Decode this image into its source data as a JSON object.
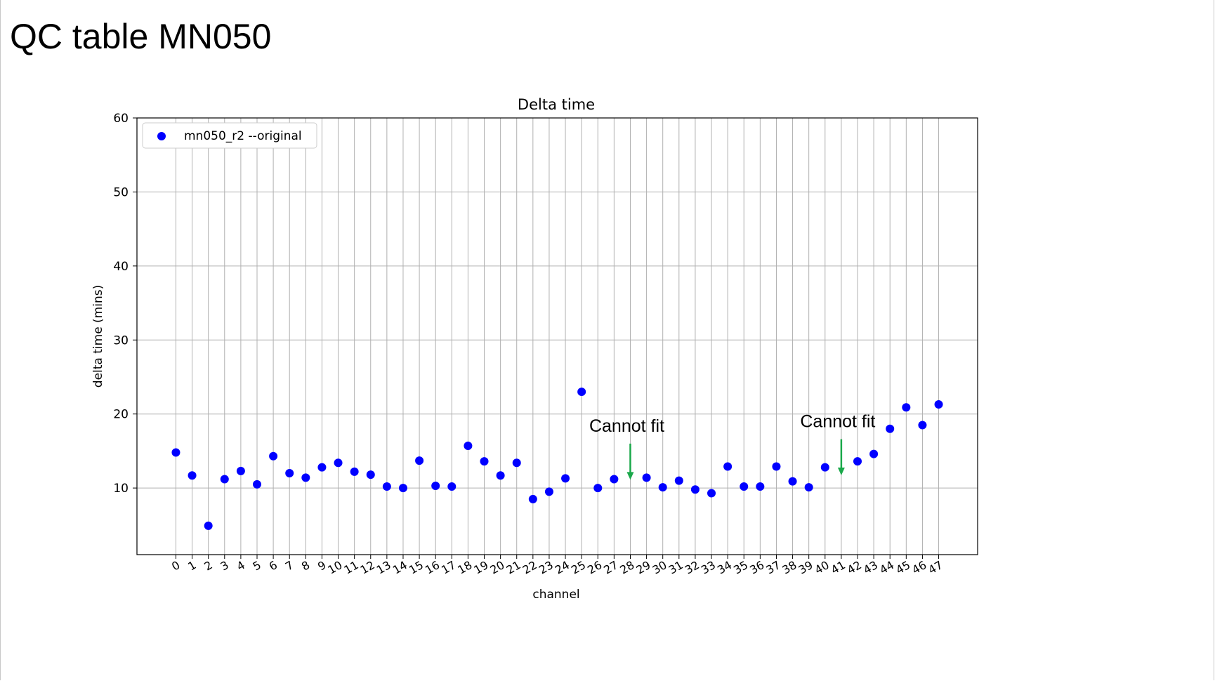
{
  "page": {
    "title": "QC table MN050"
  },
  "chart_data": {
    "type": "scatter",
    "title": "Delta time",
    "xlabel": "channel",
    "ylabel": "delta time (mins)",
    "x": [
      0,
      1,
      2,
      3,
      4,
      5,
      6,
      7,
      8,
      9,
      10,
      11,
      12,
      13,
      14,
      15,
      16,
      17,
      18,
      19,
      20,
      21,
      22,
      23,
      24,
      25,
      26,
      27,
      28,
      29,
      30,
      31,
      32,
      33,
      34,
      35,
      36,
      37,
      38,
      39,
      40,
      41,
      42,
      43,
      44,
      45,
      46,
      47
    ],
    "xticks": [
      "0",
      "1",
      "2",
      "3",
      "4",
      "5",
      "6",
      "7",
      "8",
      "9",
      "10",
      "11",
      "12",
      "13",
      "14",
      "15",
      "16",
      "17",
      "18",
      "19",
      "20",
      "21",
      "22",
      "23",
      "24",
      "25",
      "26",
      "27",
      "28",
      "29",
      "30",
      "31",
      "32",
      "33",
      "34",
      "35",
      "36",
      "37",
      "38",
      "39",
      "40",
      "41",
      "42",
      "43",
      "44",
      "45",
      "46",
      "47"
    ],
    "yticks": [
      "10",
      "20",
      "30",
      "40",
      "50",
      "60"
    ],
    "xlim": [
      -2.4,
      49.4
    ],
    "ylim": [
      1,
      60
    ],
    "grid": true,
    "legend_position": "top-left",
    "series": [
      {
        "name": "mn050_r2 --original",
        "color": "#0000ff",
        "points": [
          [
            0,
            14.8
          ],
          [
            1,
            11.7
          ],
          [
            2,
            4.9
          ],
          [
            3,
            11.2
          ],
          [
            4,
            12.3
          ],
          [
            5,
            10.5
          ],
          [
            6,
            14.3
          ],
          [
            7,
            12.0
          ],
          [
            8,
            11.4
          ],
          [
            9,
            12.8
          ],
          [
            10,
            13.4
          ],
          [
            11,
            12.2
          ],
          [
            12,
            11.8
          ],
          [
            13,
            10.2
          ],
          [
            14,
            10.0
          ],
          [
            15,
            13.7
          ],
          [
            16,
            10.3
          ],
          [
            17,
            10.2
          ],
          [
            18,
            15.7
          ],
          [
            19,
            13.6
          ],
          [
            20,
            11.7
          ],
          [
            21,
            13.4
          ],
          [
            22,
            8.5
          ],
          [
            23,
            9.5
          ],
          [
            24,
            11.3
          ],
          [
            25,
            23.0
          ],
          [
            26,
            10.0
          ],
          [
            27,
            11.2
          ],
          [
            29,
            11.4
          ],
          [
            30,
            10.1
          ],
          [
            31,
            11.0
          ],
          [
            32,
            9.8
          ],
          [
            33,
            9.3
          ],
          [
            34,
            12.9
          ],
          [
            35,
            10.2
          ],
          [
            36,
            10.2
          ],
          [
            37,
            12.9
          ],
          [
            38,
            10.9
          ],
          [
            39,
            10.1
          ],
          [
            40,
            12.8
          ],
          [
            42,
            13.6
          ],
          [
            43,
            14.6
          ],
          [
            44,
            18.0
          ],
          [
            45,
            20.9
          ],
          [
            46,
            18.5
          ],
          [
            47,
            21.3
          ]
        ]
      }
    ],
    "annotations": [
      {
        "text": "Cannot fit",
        "channel": 28,
        "arrow_from": 16,
        "arrow_to": 11.4,
        "color": "#1aa84a"
      },
      {
        "text": "Cannot fit",
        "channel": 41,
        "arrow_from": 16.6,
        "arrow_to": 12.0,
        "color": "#1aa84a"
      }
    ]
  }
}
